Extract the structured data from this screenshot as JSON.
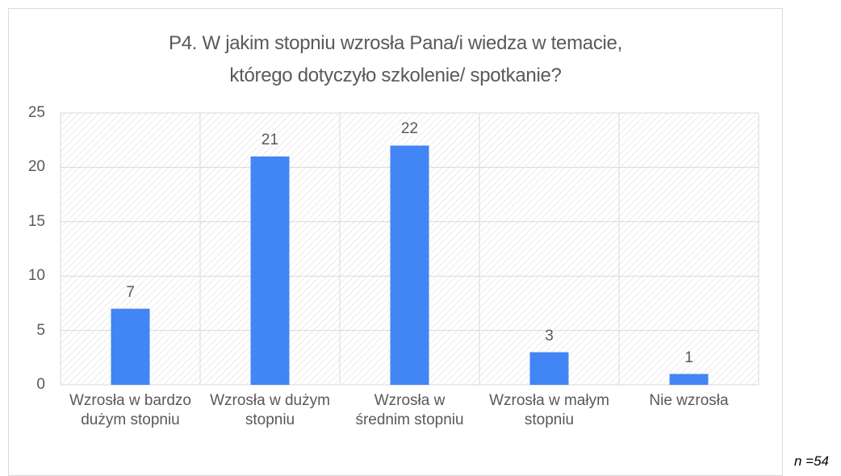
{
  "chart_data": {
    "type": "bar",
    "title": "P4. W jakim stopniu wzrosła Pana/i wiedza w temacie,\nktórego dotyczyło szkolenie/ spotkanie?",
    "categories": [
      "Wzrosła w bardzo dużym stopniu",
      "Wzrosła w dużym stopniu",
      "Wzrosła w średnim stopniu",
      "Wzrosła w małym stopniu",
      "Nie wzrosła"
    ],
    "values": [
      7,
      21,
      22,
      3,
      1
    ],
    "color": "#4285f4",
    "ylim": [
      0,
      25
    ],
    "yticks": [
      0,
      5,
      10,
      15,
      20,
      25
    ],
    "grid": true,
    "note": "n =54"
  }
}
